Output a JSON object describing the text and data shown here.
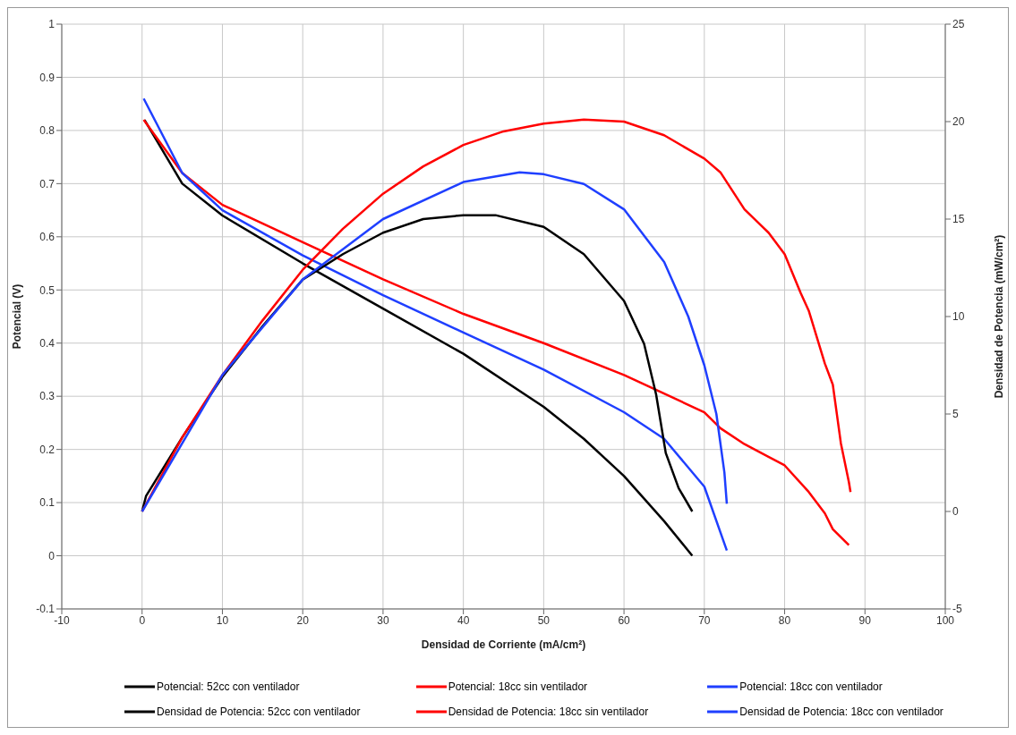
{
  "chart_data": {
    "type": "line",
    "xlabel": "Densidad de Corriente (mA/cm²)",
    "ylabel": "Potencial (V)",
    "y2label": "Densidad de Potencia (mW/cm²)",
    "xlim": [
      -10,
      100
    ],
    "xticks": [
      -10,
      0,
      10,
      20,
      30,
      40,
      50,
      60,
      70,
      80,
      90,
      100
    ],
    "ylim": [
      -0.1,
      1
    ],
    "yticks": [
      -0.1,
      0,
      0.1,
      0.2,
      0.3,
      0.4,
      0.5,
      0.6,
      0.7,
      0.8,
      0.9,
      1
    ],
    "y2lim": [
      -5,
      25
    ],
    "y2ticks": [
      -5,
      0,
      5,
      10,
      15,
      20,
      25
    ],
    "grid": true,
    "legend": "bottom",
    "marker": "none",
    "line_style": "solid",
    "series": [
      {
        "name": "Potencial: 52cc con ventilador",
        "color": "#000000",
        "x": [
          0.3,
          5,
          10,
          20,
          30,
          40,
          50,
          55,
          60,
          65,
          68.5
        ],
        "values": [
          0.82,
          0.7,
          0.64,
          0.55,
          0.465,
          0.38,
          0.28,
          0.22,
          0.15,
          0.065,
          0.0
        ]
      },
      {
        "name": "Potencial: 18cc sin ventilador",
        "color": "#ff0000",
        "x": [
          0.2,
          5,
          10,
          20,
          30,
          40,
          50,
          60,
          70,
          72,
          75,
          80,
          83,
          85,
          86,
          88
        ],
        "values": [
          0.82,
          0.72,
          0.66,
          0.59,
          0.52,
          0.455,
          0.4,
          0.34,
          0.27,
          0.24,
          0.21,
          0.17,
          0.12,
          0.08,
          0.05,
          0.02
        ]
      },
      {
        "name": "Potencial: 18cc con ventilador",
        "color": "#1f3fff",
        "x": [
          0.2,
          5,
          10,
          20,
          30,
          40,
          50,
          60,
          65,
          70,
          72.8
        ],
        "values": [
          0.86,
          0.72,
          0.65,
          0.565,
          0.49,
          0.42,
          0.35,
          0.27,
          0.22,
          0.13,
          0.01
        ]
      },
      {
        "name": "Densidad de Potencia: 52cc con ventilador",
        "color": "#000000",
        "axis": "y2",
        "x": [
          0,
          0.5,
          5,
          10,
          15,
          20,
          25,
          30,
          35,
          40,
          44,
          50,
          55,
          60,
          62.5,
          64,
          65.2,
          66.8,
          68.5
        ],
        "values": [
          0,
          0.8,
          3.8,
          6.9,
          9.5,
          11.9,
          13.2,
          14.3,
          15.0,
          15.2,
          15.2,
          14.6,
          13.2,
          10.8,
          8.6,
          6,
          3,
          1.2,
          0
        ]
      },
      {
        "name": "Densidad de Potencia: 18cc sin ventilador",
        "color": "#ff0000",
        "axis": "y2",
        "x": [
          0,
          5,
          10,
          15,
          20,
          25,
          30,
          35,
          40,
          45,
          50,
          55,
          60,
          65,
          70,
          72,
          75,
          78,
          80,
          82,
          83,
          85,
          86,
          87,
          88,
          88.2
        ],
        "values": [
          0,
          3.8,
          7,
          9.8,
          12.4,
          14.5,
          16.3,
          17.7,
          18.8,
          19.5,
          19.9,
          20.1,
          20.0,
          19.3,
          18.1,
          17.4,
          15.5,
          14.3,
          13.2,
          11.2,
          10.3,
          7.6,
          6.5,
          3.5,
          1.5,
          1.0
        ]
      },
      {
        "name": "Densidad de Potencia: 18cc con ventilador",
        "color": "#1f3fff",
        "axis": "y2",
        "x": [
          0,
          10,
          20,
          30,
          40,
          47,
          50,
          55,
          60,
          65,
          68,
          70,
          71.5,
          72.5,
          72.8
        ],
        "values": [
          0,
          7,
          11.9,
          15.0,
          16.9,
          17.4,
          17.3,
          16.8,
          15.5,
          12.8,
          10,
          7.5,
          5,
          2,
          0.4
        ]
      }
    ]
  }
}
